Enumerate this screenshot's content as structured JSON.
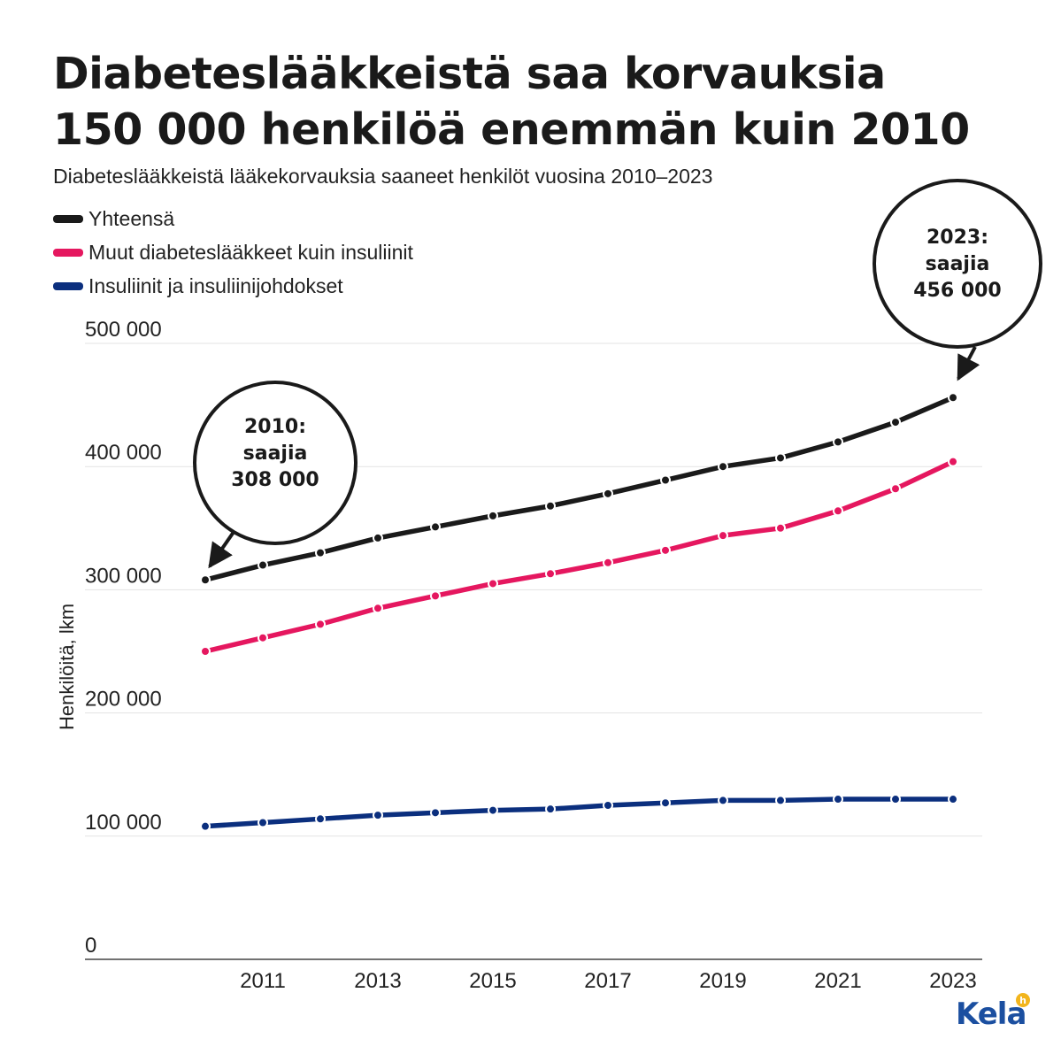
{
  "header": {
    "title_line1": "Diabeteslääkkeistä saa korvauksia",
    "title_line2": "150 000 henkilöä enemmän kuin 2010",
    "subtitle": "Diabeteslääkkeistä lääkekorvauksia saaneet henkilöt vuosina 2010–2023"
  },
  "legend": [
    {
      "label": "Yhteensä",
      "color": "#1a1a1a"
    },
    {
      "label": "Muut diabeteslääkkeet kuin insuliinit",
      "color": "#e5175f"
    },
    {
      "label": "Insuliinit ja insuliinijohdokset",
      "color": "#0b2f7e"
    }
  ],
  "annotations": {
    "start": {
      "year": "2010:",
      "label": "saajia",
      "value": "308 000"
    },
    "end": {
      "year": "2023:",
      "label": "saajia",
      "value": "456 000"
    }
  },
  "logo": {
    "text": "Kela",
    "icon": "kela-logo-icon"
  },
  "chart_data": {
    "type": "line",
    "x": [
      2010,
      2011,
      2012,
      2013,
      2014,
      2015,
      2016,
      2017,
      2018,
      2019,
      2020,
      2021,
      2022,
      2023
    ],
    "x_tick_labels": [
      "2011",
      "2013",
      "2015",
      "2017",
      "2019",
      "2021",
      "2023"
    ],
    "y_tick_labels": [
      "0",
      "100 000",
      "200 000",
      "300 000",
      "400 000",
      "500 000"
    ],
    "ylabel": "Henkilöitä, lkm",
    "ylim": [
      0,
      500000
    ],
    "grid": true,
    "series": [
      {
        "name": "Yhteensä",
        "color": "#1a1a1a",
        "values": [
          308000,
          320000,
          330000,
          342000,
          351000,
          360000,
          368000,
          378000,
          389000,
          400000,
          407000,
          420000,
          436000,
          456000
        ]
      },
      {
        "name": "Muut diabeteslääkkeet kuin insuliinit",
        "color": "#e5175f",
        "values": [
          250000,
          261000,
          272000,
          285000,
          295000,
          305000,
          313000,
          322000,
          332000,
          344000,
          350000,
          364000,
          382000,
          404000
        ]
      },
      {
        "name": "Insuliinit ja insuliinijohdokset",
        "color": "#0b2f7e",
        "values": [
          108000,
          111000,
          114000,
          117000,
          119000,
          121000,
          122000,
          125000,
          127000,
          129000,
          129000,
          130000,
          130000,
          130000
        ]
      }
    ]
  }
}
